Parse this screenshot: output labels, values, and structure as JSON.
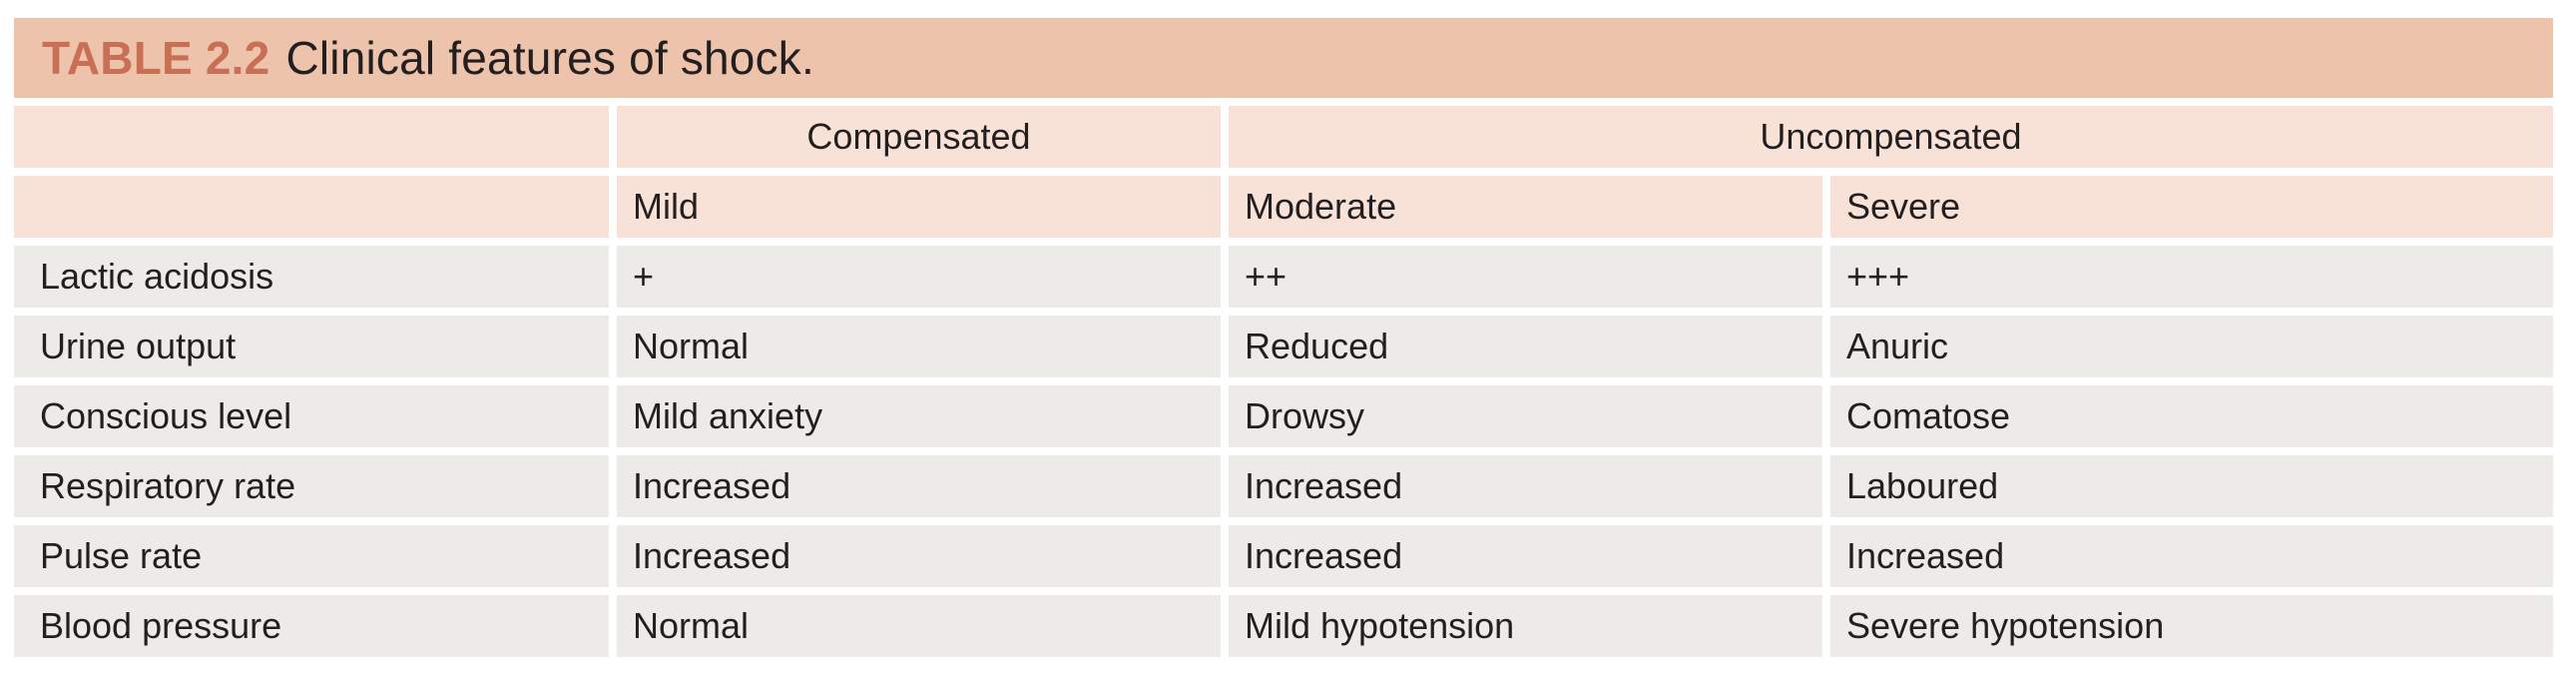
{
  "title": {
    "label": "TABLE 2.2",
    "caption": "Clinical features of shock."
  },
  "colors": {
    "title_bar_bg": "#edc3ab",
    "title_label": "#c86f55",
    "header_bg": "#f8e2d8",
    "row_bg": "#ecebe8",
    "text": "#231f20",
    "page_bg": "#ffffff"
  },
  "table": {
    "col_groups": [
      {
        "label": "",
        "span": 1
      },
      {
        "label": "Compensated",
        "span": 1
      },
      {
        "label": "Uncompensated",
        "span": 2
      }
    ],
    "sub_headers": [
      "",
      "Mild",
      "Moderate",
      "Severe"
    ],
    "rows": [
      {
        "label": "Lactic acidosis",
        "cells": [
          "+",
          "++",
          "+++"
        ]
      },
      {
        "label": "Urine output",
        "cells": [
          "Normal",
          "Reduced",
          "Anuric"
        ]
      },
      {
        "label": "Conscious level",
        "cells": [
          "Mild anxiety",
          "Drowsy",
          "Comatose"
        ]
      },
      {
        "label": "Respiratory rate",
        "cells": [
          "Increased",
          "Increased",
          "Laboured"
        ]
      },
      {
        "label": "Pulse rate",
        "cells": [
          "Increased",
          "Increased",
          "Increased"
        ]
      },
      {
        "label": "Blood pressure",
        "cells": [
          "Normal",
          "Mild hypotension",
          "Severe hypotension"
        ]
      }
    ]
  }
}
